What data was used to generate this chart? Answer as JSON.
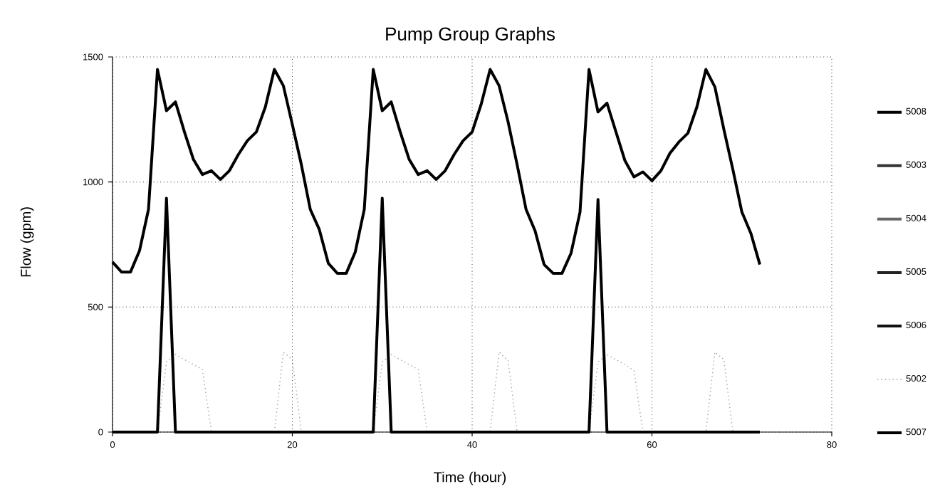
{
  "chart_data": {
    "type": "line",
    "title": "Pump Group Graphs",
    "xlabel": "Time (hour)",
    "ylabel": "Flow (gpm)",
    "xlim": [
      0,
      80
    ],
    "ylim": [
      0,
      1500
    ],
    "xticks": [
      0,
      20,
      40,
      60,
      80
    ],
    "yticks": [
      0,
      500,
      1000,
      1500
    ],
    "grid": true,
    "legend": "right",
    "marker": "none",
    "series": [
      {
        "name": "5008",
        "color": "#000000",
        "line_style": "solid",
        "x": [
          0,
          1,
          2,
          3,
          4,
          5,
          6,
          7,
          8,
          9,
          10,
          11,
          12,
          13,
          14,
          15,
          16,
          17,
          18,
          19,
          20,
          21,
          22,
          23,
          24,
          25,
          26,
          27,
          28,
          29,
          30,
          31,
          32,
          33,
          34,
          35,
          36,
          37,
          38,
          39,
          40,
          41,
          42,
          43,
          44,
          45,
          46,
          47,
          48,
          49,
          50,
          51,
          52,
          53,
          54,
          55,
          56,
          57,
          58,
          59,
          60,
          61,
          62,
          63,
          64,
          65,
          66,
          67,
          68,
          69,
          70,
          71,
          72
        ],
        "values": [
          680,
          640,
          640,
          725,
          890,
          1450,
          1285,
          1320,
          1200,
          1090,
          1030,
          1045,
          1010,
          1045,
          1110,
          1165,
          1200,
          1300,
          1450,
          1385,
          1230,
          1070,
          890,
          810,
          675,
          635,
          635,
          720,
          890,
          1450,
          1285,
          1320,
          1200,
          1090,
          1030,
          1045,
          1010,
          1045,
          1110,
          1165,
          1200,
          1310,
          1450,
          1385,
          1240,
          1070,
          890,
          805,
          670,
          635,
          635,
          715,
          880,
          1450,
          1280,
          1315,
          1200,
          1085,
          1020,
          1040,
          1005,
          1045,
          1115,
          1160,
          1195,
          1300,
          1450,
          1380,
          1210,
          1050,
          880,
          795,
          670
        ]
      },
      {
        "name": "5003",
        "color": "#333333",
        "line_style": "solid"
      },
      {
        "name": "5004",
        "color": "#666666",
        "line_style": "solid"
      },
      {
        "name": "5005",
        "color": "#222222",
        "line_style": "solid"
      },
      {
        "name": "5006",
        "color": "#111111",
        "line_style": "solid"
      },
      {
        "name": "5002",
        "color": "#a0a0a0",
        "line_style": "dotted",
        "x": [
          0,
          5,
          6,
          7,
          8,
          9,
          10,
          11,
          18,
          19,
          20,
          21,
          29,
          30,
          31,
          32,
          33,
          34,
          35,
          42,
          43,
          44,
          45,
          53,
          54,
          55,
          56,
          57,
          58,
          59,
          66,
          67,
          68,
          69,
          72
        ],
        "values": [
          0,
          0,
          280,
          310,
          290,
          270,
          250,
          0,
          0,
          320,
          290,
          0,
          0,
          280,
          310,
          290,
          270,
          250,
          0,
          0,
          320,
          285,
          0,
          0,
          280,
          310,
          290,
          270,
          245,
          0,
          0,
          320,
          290,
          0,
          0
        ]
      },
      {
        "name": "5007",
        "color": "#000000",
        "line_style": "solid",
        "x": [
          0,
          5,
          6,
          7,
          29,
          30,
          31,
          53,
          54,
          55,
          72
        ],
        "values": [
          0,
          0,
          935,
          0,
          0,
          935,
          0,
          0,
          930,
          0,
          0
        ]
      }
    ]
  }
}
